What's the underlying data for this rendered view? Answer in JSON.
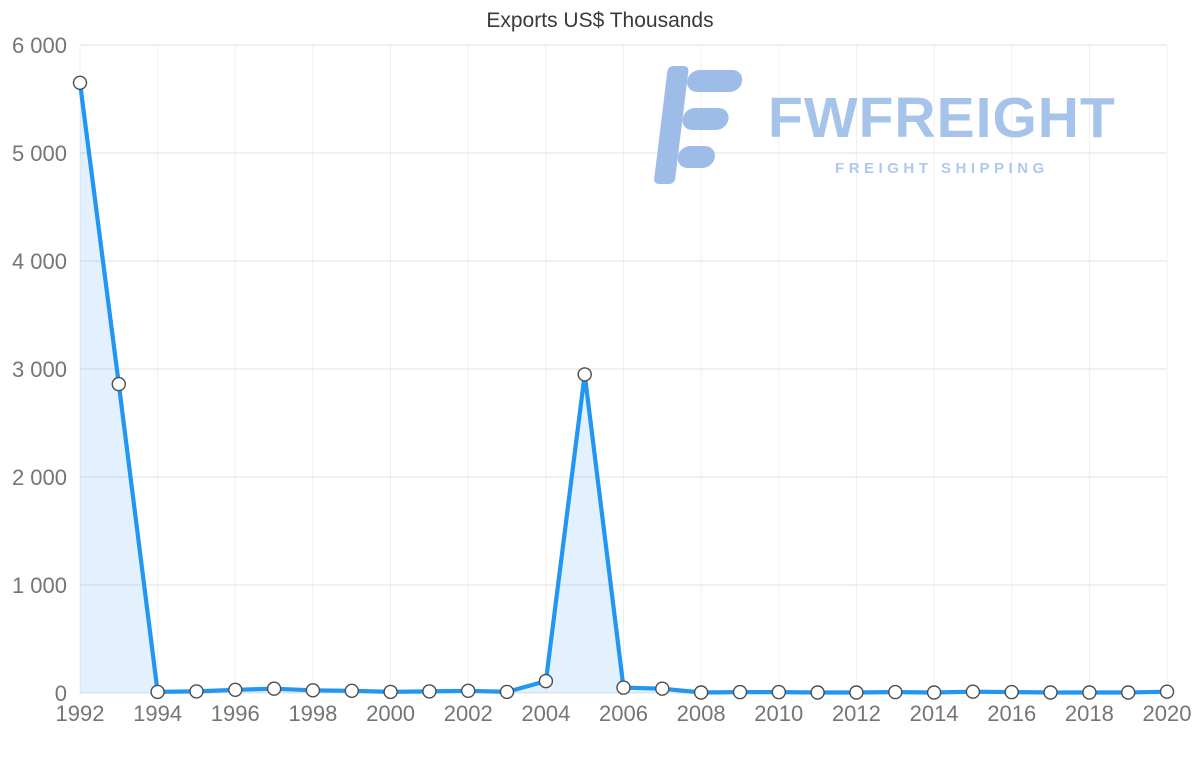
{
  "chart_data": {
    "type": "area",
    "title": "Exports US$ Thousands",
    "x": [
      1992,
      1993,
      1994,
      1995,
      1996,
      1997,
      1998,
      1999,
      2000,
      2001,
      2002,
      2003,
      2004,
      2005,
      2006,
      2007,
      2008,
      2009,
      2010,
      2011,
      2012,
      2013,
      2014,
      2015,
      2016,
      2017,
      2018,
      2019,
      2020
    ],
    "series": [
      {
        "name": "Exports",
        "values": [
          5650,
          2860,
          10,
          15,
          30,
          40,
          25,
          20,
          10,
          15,
          20,
          10,
          110,
          2950,
          50,
          40,
          5,
          8,
          8,
          5,
          5,
          8,
          5,
          12,
          8,
          5,
          5,
          5,
          12
        ]
      }
    ],
    "xlabel": "",
    "ylabel": "",
    "ylim": [
      0,
      6000
    ],
    "y_ticks": [
      0,
      1000,
      2000,
      3000,
      4000,
      5000,
      6000
    ],
    "y_tick_labels": [
      "0",
      "1 000",
      "2 000",
      "3 000",
      "4 000",
      "5 000",
      "6 000"
    ],
    "x_ticks": [
      1992,
      1994,
      1996,
      1998,
      2000,
      2002,
      2004,
      2006,
      2008,
      2010,
      2012,
      2014,
      2016,
      2018,
      2020
    ],
    "x_tick_labels": [
      "1992",
      "1994",
      "1996",
      "1998",
      "2000",
      "2002",
      "2004",
      "2006",
      "2008",
      "2010",
      "2012",
      "2014",
      "2016",
      "2018",
      "2020"
    ],
    "grid": true,
    "legend": "none",
    "line_color": "#2196f3",
    "area_color": "#2196f3",
    "area_opacity": 0.13,
    "marker_fill": "#ffffff",
    "marker_stroke": "#4d4d4d",
    "axis_text_color": "#757575",
    "grid_color": "#e0e0e0",
    "vgrid_color": "#efefef",
    "title_color": "#3a3a3a"
  },
  "watermark": {
    "brand": "FWFREIGHT",
    "tagline": "FREIGHT SHIPPING",
    "color": "#a6c3ea"
  }
}
